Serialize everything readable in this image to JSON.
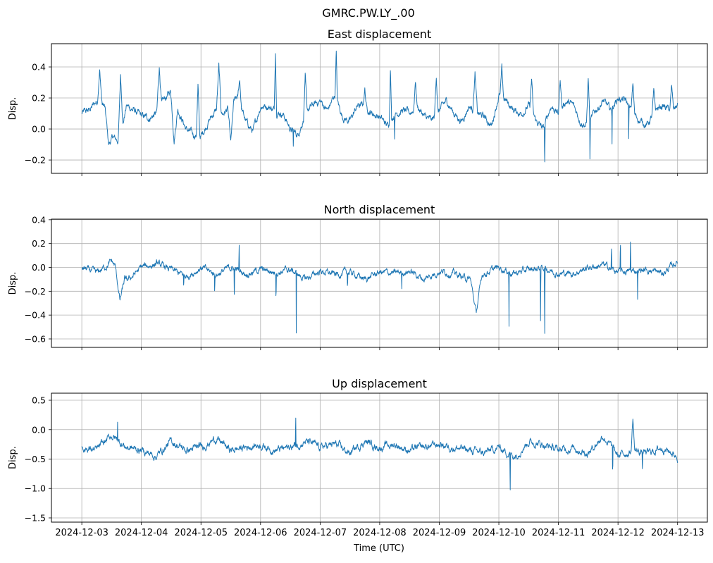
{
  "chart_data": {
    "type": "line",
    "title": "GMRC.PW.LY_.00",
    "xlabel": "Time (UTC)",
    "x_unit": "days since 2024-12-03 00:00 UTC",
    "x_tick_labels": [
      "2024-12-03",
      "2024-12-04",
      "2024-12-05",
      "2024-12-06",
      "2024-12-07",
      "2024-12-08",
      "2024-12-09",
      "2024-12-10",
      "2024-12-11",
      "2024-12-12",
      "2024-12-13"
    ],
    "x_ticks": [
      0,
      1,
      2,
      3,
      4,
      5,
      6,
      7,
      8,
      9,
      10
    ],
    "xlim": [
      -0.51,
      10.5
    ],
    "grid": true,
    "color": "#1f77b4",
    "panels": [
      {
        "title": "East displacement",
        "ylabel": "Disp.",
        "ylim": [
          -0.286,
          0.55
        ],
        "y_ticks": [
          -0.2,
          0.0,
          0.2,
          0.4
        ],
        "y_tick_labels": [
          "−0.2",
          "0.0",
          "0.2",
          "0.4"
        ],
        "baseline_step_days": 0.125,
        "baseline": [
          0.1,
          0.12,
          0.18,
          0.15,
          -0.05,
          -0.08,
          0.15,
          0.12,
          0.08,
          0.07,
          0.1,
          0.18,
          0.25,
          0.12,
          0.0,
          -0.04,
          -0.05,
          0.05,
          0.12,
          0.1,
          0.15,
          0.2,
          0.05,
          -0.02,
          0.15,
          0.15,
          0.12,
          0.1,
          0.0,
          -0.04,
          0.1,
          0.15,
          0.18,
          0.12,
          0.22,
          0.08,
          0.05,
          0.15,
          0.15,
          0.1,
          0.08,
          0.02,
          0.1,
          0.12,
          0.1,
          0.15,
          0.08,
          0.05,
          0.12,
          0.18,
          0.1,
          0.05,
          0.15,
          0.1,
          0.08,
          0.02,
          0.22,
          0.18,
          0.12,
          0.1,
          0.15,
          0.05,
          0.0,
          0.15,
          0.1,
          0.18,
          0.15,
          0.05,
          0.02,
          0.12,
          0.18,
          0.12,
          0.2,
          0.18,
          0.1,
          0.05,
          0.03,
          0.12,
          0.15,
          0.12,
          0.15
        ],
        "events": [
          [
            0.3,
            0.38,
            0.04
          ],
          [
            0.65,
            0.35,
            0.04
          ],
          [
            1.3,
            0.4,
            0.04
          ],
          [
            1.95,
            0.28,
            0.03
          ],
          [
            2.3,
            0.4,
            0.04
          ],
          [
            2.65,
            0.32,
            0.03
          ],
          [
            3.25,
            0.51,
            0.02
          ],
          [
            3.75,
            0.34,
            0.03
          ],
          [
            4.27,
            0.51,
            0.02
          ],
          [
            4.75,
            0.26,
            0.03
          ],
          [
            5.18,
            0.42,
            0.02
          ],
          [
            5.6,
            0.31,
            0.03
          ],
          [
            5.95,
            0.35,
            0.03
          ],
          [
            6.6,
            0.36,
            0.04
          ],
          [
            7.05,
            0.38,
            0.03
          ],
          [
            7.55,
            0.32,
            0.03
          ],
          [
            8.03,
            0.33,
            0.03
          ],
          [
            8.5,
            0.33,
            0.03
          ],
          [
            9.25,
            0.3,
            0.03
          ],
          [
            9.6,
            0.23,
            0.03
          ],
          [
            9.9,
            0.27,
            0.03
          ],
          [
            0.45,
            -0.1,
            0.06
          ],
          [
            1.55,
            -0.07,
            0.06
          ],
          [
            2.5,
            -0.1,
            0.05
          ],
          [
            3.55,
            -0.12,
            0.006
          ],
          [
            5.25,
            -0.04,
            0.006
          ],
          [
            7.77,
            -0.25,
            0.008
          ],
          [
            8.53,
            -0.25,
            0.006
          ],
          [
            8.9,
            -0.09,
            0.005
          ],
          [
            9.18,
            -0.1,
            0.005
          ]
        ]
      },
      {
        "title": "North displacement",
        "ylabel": "Disp.",
        "ylim": [
          -0.671,
          0.405
        ],
        "y_ticks": [
          -0.6,
          -0.4,
          -0.2,
          0.0,
          0.2,
          0.4
        ],
        "y_tick_labels": [
          "−0.6",
          "−0.4",
          "−0.2",
          "0.0",
          "0.2",
          "0.4"
        ],
        "baseline_step_days": 0.25,
        "baseline": [
          0.0,
          -0.05,
          0.05,
          -0.12,
          0.0,
          0.03,
          -0.02,
          -0.08,
          0.0,
          -0.06,
          0.0,
          -0.05,
          -0.02,
          -0.04,
          -0.02,
          -0.1,
          -0.03,
          -0.06,
          -0.04,
          -0.1,
          -0.04,
          -0.05,
          -0.03,
          -0.1,
          -0.03,
          -0.05,
          -0.1,
          -0.05,
          0.0,
          -0.05,
          -0.02,
          0.0,
          -0.05,
          -0.05,
          0.0,
          0.02,
          -0.04,
          -0.03,
          -0.02,
          -0.05,
          0.05
        ],
        "events": [
          [
            0.64,
            -0.28,
            0.08
          ],
          [
            6.62,
            -0.38,
            0.1
          ],
          [
            1.71,
            -0.2,
            0.005
          ],
          [
            2.23,
            -0.2,
            0.005
          ],
          [
            2.56,
            -0.34,
            0.005
          ],
          [
            2.64,
            0.33,
            0.004
          ],
          [
            3.26,
            -0.29,
            0.005
          ],
          [
            3.6,
            -0.56,
            0.004
          ],
          [
            4.46,
            -0.2,
            0.005
          ],
          [
            5.37,
            -0.2,
            0.005
          ],
          [
            7.17,
            -0.61,
            0.004
          ],
          [
            7.7,
            -0.47,
            0.006
          ],
          [
            7.77,
            -0.63,
            0.006
          ],
          [
            8.89,
            0.25,
            0.004
          ],
          [
            9.04,
            0.32,
            0.004
          ],
          [
            9.21,
            0.36,
            0.004
          ],
          [
            9.33,
            -0.32,
            0.004
          ]
        ]
      },
      {
        "title": "Up displacement",
        "ylabel": "Disp.",
        "ylim": [
          -1.572,
          0.62
        ],
        "y_ticks": [
          -1.5,
          -1.0,
          -0.5,
          0.0,
          0.5
        ],
        "y_tick_labels": [
          "−1.5",
          "−1.0",
          "−0.5",
          "0.0",
          "0.5"
        ],
        "baseline_step_days": 0.25,
        "baseline": [
          -0.3,
          -0.35,
          -0.1,
          -0.3,
          -0.35,
          -0.45,
          -0.2,
          -0.35,
          -0.3,
          -0.15,
          -0.35,
          -0.3,
          -0.25,
          -0.35,
          -0.3,
          -0.2,
          -0.3,
          -0.25,
          -0.4,
          -0.2,
          -0.3,
          -0.25,
          -0.35,
          -0.3,
          -0.25,
          -0.3,
          -0.35,
          -0.4,
          -0.3,
          -0.45,
          -0.2,
          -0.25,
          -0.35,
          -0.3,
          -0.4,
          -0.1,
          -0.45,
          -0.35,
          -0.4,
          -0.3,
          -0.45
        ],
        "events": [
          [
            0.6,
            0.15,
            0.005
          ],
          [
            3.59,
            0.52,
            0.004
          ],
          [
            7.19,
            -1.5,
            0.004
          ],
          [
            8.91,
            -0.93,
            0.005
          ],
          [
            9.41,
            -0.83,
            0.005
          ],
          [
            9.25,
            0.2,
            0.03
          ]
        ]
      }
    ]
  }
}
